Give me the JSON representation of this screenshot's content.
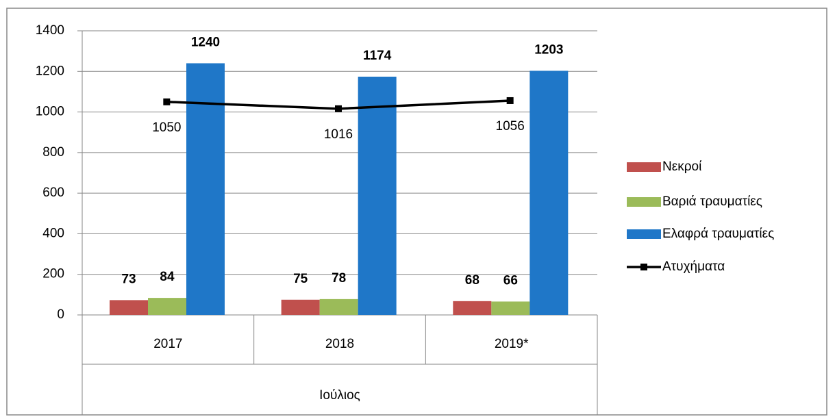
{
  "chart_data": {
    "type": "bar",
    "categories": [
      "2017",
      "2018",
      "2019*"
    ],
    "group_label": "Ιούλιος",
    "series": [
      {
        "name": "Νεκροί",
        "color": "#c0504d",
        "values": [
          73,
          75,
          68
        ]
      },
      {
        "name": "Βαριά τραυματίες",
        "color": "#9bbb59",
        "values": [
          84,
          78,
          66
        ]
      },
      {
        "name": "Ελαφρά τραυματίες",
        "color": "#1f77c8",
        "values": [
          1240,
          1174,
          1203
        ]
      },
      {
        "name": "Ατυχήματα",
        "color": "#000000",
        "type": "line",
        "values": [
          1050,
          1016,
          1056
        ]
      }
    ],
    "ylim": [
      0,
      1400
    ],
    "yticks": [
      0,
      200,
      400,
      600,
      800,
      1000,
      1200,
      1400
    ],
    "grid": true,
    "legend": "right"
  }
}
